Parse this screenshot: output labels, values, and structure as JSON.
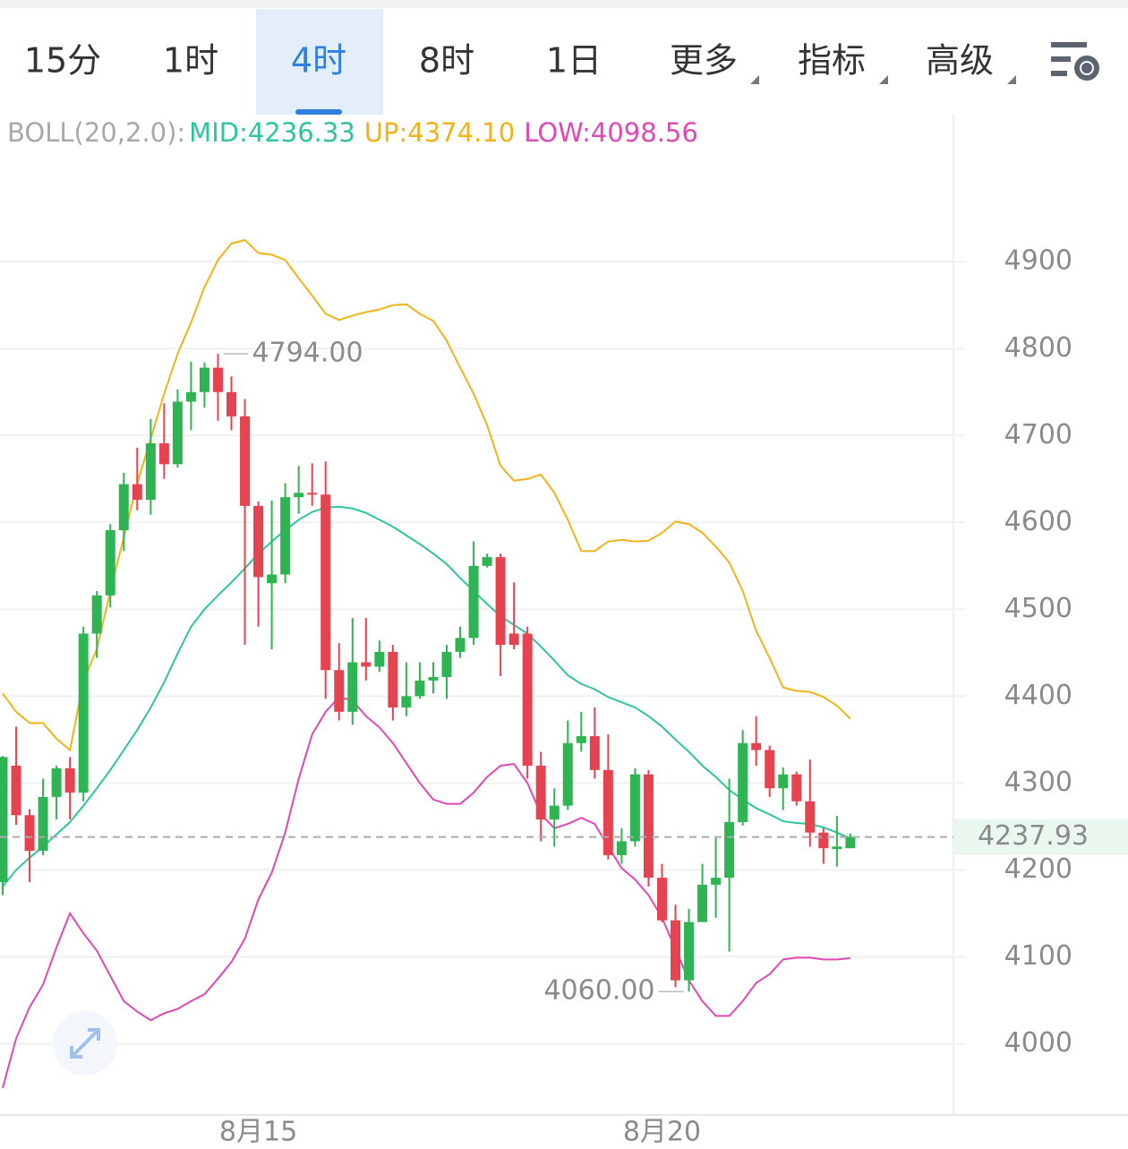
{
  "toolbar": {
    "tabs": [
      "15分",
      "1时",
      "4时",
      "8时",
      "1日",
      "更多",
      "指标",
      "高级"
    ],
    "active": "4时"
  },
  "chart_data": {
    "type": "candlestick",
    "categories": [
      null,
      null,
      null,
      null,
      null,
      null,
      null,
      null,
      null,
      null,
      null,
      null,
      null,
      null,
      null,
      null,
      null,
      null,
      null,
      "8月15",
      null,
      null,
      null,
      null,
      null,
      null,
      null,
      null,
      null,
      null,
      null,
      null,
      null,
      null,
      null,
      null,
      null,
      null,
      null,
      null,
      null,
      null,
      null,
      null,
      null,
      null,
      null,
      null,
      null,
      "8月20",
      null,
      null,
      null,
      null,
      null,
      null,
      null,
      null,
      null,
      null,
      null,
      null,
      null,
      null
    ],
    "open": [
      4186,
      4320,
      4263,
      4222,
      4284,
      4317,
      4289,
      4472,
      4516,
      4591,
      4644,
      4626,
      4691,
      4667,
      4739,
      4750,
      4778,
      4750,
      4722,
      4619,
      4530,
      4540,
      4629,
      4634,
      4632,
      4430,
      4382,
      4439,
      4434,
      4451,
      4387,
      4400,
      4418,
      4422,
      4451,
      4467,
      4550,
      4560,
      4472,
      4472,
      4320,
      4258,
      4274,
      4346,
      4354,
      4315,
      4217,
      4233,
      4310,
      4191,
      4142,
      4073,
      4140,
      4183,
      4191,
      4255,
      4346,
      4338,
      4294,
      4310,
      4279,
      4243,
      4224,
      4225
    ],
    "high": [
      4331,
      4365,
      4270,
      4305,
      4320,
      4330,
      4480,
      4521,
      4598,
      4657,
      4686,
      4719,
      4737,
      4753,
      4785,
      4784,
      4794,
      4768,
      4742,
      4624,
      4625,
      4645,
      4665,
      4668,
      4670,
      4461,
      4490,
      4490,
      4464,
      4459,
      4439,
      4439,
      4439,
      4459,
      4480,
      4578,
      4564,
      4564,
      4531,
      4480,
      4336,
      4294,
      4372,
      4382,
      4387,
      4356,
      4248,
      4317,
      4315,
      4207,
      4160,
      4155,
      4207,
      4238,
      4305,
      4361,
      4377,
      4343,
      4318,
      4313,
      4327,
      4248,
      4262,
      4242
    ],
    "low": [
      4171,
      4252,
      4186,
      4217,
      4258,
      4258,
      4279,
      4444,
      4502,
      4567,
      4614,
      4609,
      4650,
      4663,
      4706,
      4732,
      4717,
      4706,
      4459,
      4480,
      4454,
      4530,
      4610,
      4619,
      4397,
      4372,
      4367,
      4418,
      4428,
      4372,
      4377,
      4397,
      4403,
      4397,
      4444,
      4459,
      4548,
      4423,
      4454,
      4305,
      4233,
      4227,
      4269,
      4336,
      4305,
      4212,
      4207,
      4227,
      4181,
      4140,
      4065,
      4060,
      4140,
      4145,
      4106,
      4251,
      4320,
      4284,
      4269,
      4274,
      4227,
      4207,
      4204,
      4225
    ],
    "close": [
      4330,
      4263,
      4222,
      4284,
      4317,
      4289,
      4472,
      4516,
      4591,
      4644,
      4626,
      4691,
      4667,
      4739,
      4750,
      4778,
      4750,
      4722,
      4619,
      4537,
      4540,
      4629,
      4634,
      4632,
      4430,
      4382,
      4439,
      4434,
      4451,
      4387,
      4400,
      4418,
      4422,
      4451,
      4467,
      4550,
      4560,
      4459,
      4459,
      4320,
      4258,
      4274,
      4346,
      4354,
      4315,
      4217,
      4233,
      4310,
      4191,
      4142,
      4073,
      4140,
      4183,
      4191,
      4255,
      4346,
      4338,
      4294,
      4310,
      4279,
      4243,
      4225,
      4227,
      4237.93
    ],
    "up_color": "#2fb454",
    "down_color": "#e5434f",
    "indicator": "BOLL(20,2.0):",
    "lines": [
      {
        "legend": "MID:4236.33",
        "color": "#2ec4a0",
        "values": [
          4181,
          4200,
          4214,
          4227,
          4241,
          4255,
          4274,
          4294,
          4315,
          4338,
          4361,
          4387,
          4416,
          4449,
          4480,
          4500,
          4516,
          4531,
          4547,
          4564,
          4578,
          4591,
          4603,
          4612,
          4617,
          4618,
          4616,
          4611,
          4603,
          4595,
          4585,
          4575,
          4564,
          4552,
          4536,
          4521,
          4506,
          4492,
          4482,
          4472,
          4457,
          4441,
          4424,
          4414,
          4408,
          4399,
          4393,
          4387,
          4377,
          4365,
          4350,
          4336,
          4320,
          4307,
          4292,
          4281,
          4271,
          4264,
          4256,
          4254,
          4253,
          4249,
          4243,
          4236.33
        ]
      },
      {
        "legend": "UP:4374.10",
        "color": "#f0b419",
        "values": [
          4403,
          4382,
          4369,
          4369,
          4351,
          4338,
          4418,
          4454,
          4521,
          4583,
          4645,
          4696,
          4748,
          4794,
          4830,
          4871,
          4902,
          4921,
          4925,
          4910,
          4908,
          4902,
          4881,
          4861,
          4840,
          4833,
          4838,
          4842,
          4845,
          4850,
          4851,
          4840,
          4832,
          4809,
          4778,
          4748,
          4712,
          4665,
          4648,
          4650,
          4655,
          4634,
          4603,
          4567,
          4567,
          4578,
          4580,
          4578,
          4579,
          4588,
          4601,
          4598,
          4588,
          4572,
          4554,
          4521,
          4475,
          4444,
          4410,
          4406,
          4405,
          4399,
          4389,
          4374.1
        ]
      },
      {
        "legend": "LOW:4098.56",
        "color": "#e048b4",
        "values": [
          3949,
          4006,
          4042,
          4068,
          4111,
          4150,
          4127,
          4107,
          4078,
          4049,
          4037,
          4027,
          4035,
          4040,
          4049,
          4057,
          4075,
          4094,
          4121,
          4166,
          4197,
          4243,
          4305,
          4356,
          4382,
          4399,
          4395,
          4377,
          4364,
          4346,
          4323,
          4300,
          4281,
          4276,
          4276,
          4289,
          4307,
          4320,
          4322,
          4300,
          4264,
          4248,
          4253,
          4260,
          4253,
          4227,
          4202,
          4189,
          4171,
          4145,
          4109,
          4073,
          4049,
          4032,
          4032,
          4049,
          4070,
          4080,
          4097,
          4099,
          4099,
          4097,
          4097,
          4098.56
        ]
      }
    ],
    "ylim": [
      3918,
      5026
    ],
    "yticks": [
      4000,
      4100,
      4200,
      4300,
      4400,
      4500,
      4600,
      4700,
      4800,
      4900
    ],
    "grid": true,
    "current_price": 4237.93,
    "annotations": [
      {
        "label": "4794.00",
        "value": 4794
      },
      {
        "label": "4060.00",
        "value": 4060
      }
    ]
  }
}
